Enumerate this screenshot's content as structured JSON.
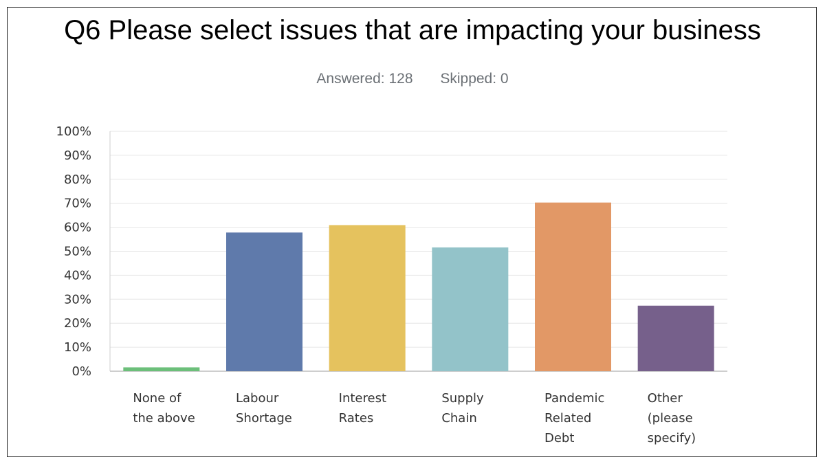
{
  "chart_data": {
    "type": "bar",
    "title": "Q6 Please select issues that are impacting your business",
    "answered_label": "Answered: 128",
    "skipped_label": "Skipped: 0",
    "categories": [
      [
        "None of",
        "the above"
      ],
      [
        "Labour",
        "Shortage"
      ],
      [
        "Interest",
        "Rates"
      ],
      [
        "Supply",
        "Chain"
      ],
      [
        "Pandemic",
        "Related",
        "Debt"
      ],
      [
        "Other",
        "(please",
        "specify)"
      ]
    ],
    "values": [
      1.6,
      57.8,
      60.9,
      51.6,
      70.3,
      27.3
    ],
    "colors": [
      "#6cbf7a",
      "#5f7aab",
      "#e5c25e",
      "#93c3c9",
      "#e29866",
      "#76608b"
    ],
    "ylim": [
      0,
      100
    ],
    "yticks": [
      0,
      10,
      20,
      30,
      40,
      50,
      60,
      70,
      80,
      90,
      100
    ],
    "tick_suffix": "%",
    "xlabel": "",
    "ylabel": "",
    "grid": true
  }
}
